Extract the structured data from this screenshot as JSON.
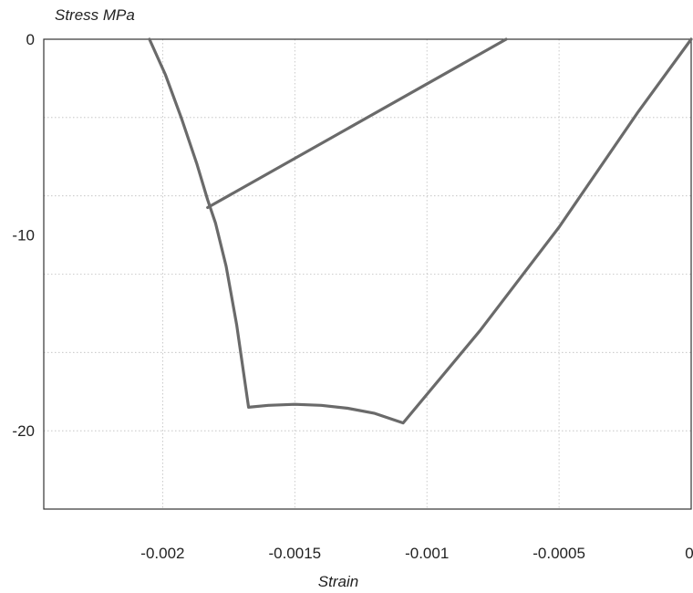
{
  "chart_data": {
    "type": "line",
    "title": "",
    "xlabel": "Strain",
    "ylabel": "Stress MPa",
    "xlim": [
      -0.00245,
      0.0
    ],
    "ylim": [
      -24.0,
      0.0
    ],
    "grid": true,
    "x_ticks": [
      {
        "value": -0.002,
        "label": "-0.002"
      },
      {
        "value": -0.0015,
        "label": "-0.0015"
      },
      {
        "value": -0.001,
        "label": "-0.001"
      },
      {
        "value": -0.0005,
        "label": "-0.0005"
      },
      {
        "value": 0.0,
        "label": "0"
      }
    ],
    "y_ticks": [
      {
        "value": 0,
        "label": "0"
      },
      {
        "value": -10,
        "label": "-10"
      },
      {
        "value": -20,
        "label": "-20"
      }
    ],
    "x_grid": [
      -0.002,
      -0.0015,
      -0.001,
      -0.0005
    ],
    "y_grid": [
      -4,
      -8,
      -12,
      -16,
      -20
    ],
    "series": [
      {
        "x": [
          -0.00205,
          -0.00199,
          -0.00193,
          -0.00187,
          -0.00183,
          -0.0018,
          -0.00176,
          -0.00172,
          -0.001675,
          -0.0016,
          -0.0015,
          -0.0014,
          -0.0013,
          -0.0012,
          -0.00109,
          -0.0008,
          -0.0005,
          -0.0002,
          0.0
        ],
        "y": [
          0.0,
          -1.8,
          -4.0,
          -6.4,
          -8.2,
          -9.4,
          -11.6,
          -14.6,
          -18.8,
          -18.7,
          -18.65,
          -18.7,
          -18.85,
          -19.1,
          -19.6,
          -14.9,
          -9.6,
          -3.7,
          0.0
        ]
      },
      {
        "x": [
          -0.00183,
          -0.0007
        ],
        "y": [
          -8.6,
          0.0
        ]
      }
    ]
  }
}
